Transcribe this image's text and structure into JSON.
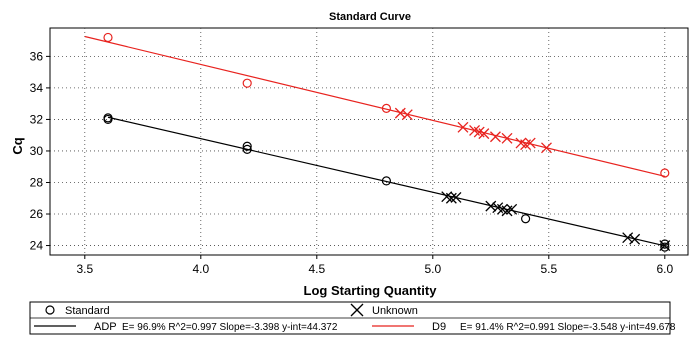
{
  "chart_data": {
    "type": "scatter",
    "title": "Standard Curve",
    "xlabel": "Log Starting Quantity",
    "ylabel": "Cq",
    "xlim": [
      3.35,
      6.1
    ],
    "ylim": [
      23.4,
      37.8
    ],
    "x_ticks": [
      "3.5",
      "4.0",
      "4.5",
      "5.0",
      "5.5",
      "6.0"
    ],
    "x_tick_values": [
      3.5,
      4.0,
      4.5,
      5.0,
      5.5,
      6.0
    ],
    "y_ticks": [
      "24",
      "26",
      "28",
      "30",
      "32",
      "34",
      "36"
    ],
    "y_tick_values": [
      24,
      26,
      28,
      30,
      32,
      34,
      36
    ],
    "grid": true,
    "legend_position": "bottom",
    "marker_legend": {
      "standard_label": "Standard",
      "unknown_label": "Unknown"
    },
    "series": [
      {
        "name": "ADP",
        "color": "#000000",
        "fit_text": "E= 96.9% R^2=0.997 Slope=-3.398 y-int=44.372",
        "slope": -3.398,
        "intercept": 44.372,
        "fit_range": [
          3.6,
          6.0
        ],
        "standards": [
          {
            "x": 3.6,
            "y": 32.1
          },
          {
            "x": 3.6,
            "y": 32.0
          },
          {
            "x": 4.2,
            "y": 30.3
          },
          {
            "x": 4.2,
            "y": 30.1
          },
          {
            "x": 4.8,
            "y": 28.1
          },
          {
            "x": 5.4,
            "y": 25.7
          },
          {
            "x": 6.0,
            "y": 24.1
          },
          {
            "x": 6.0,
            "y": 23.9
          }
        ],
        "unknowns": [
          {
            "x": 5.06,
            "y": 27.1
          },
          {
            "x": 5.08,
            "y": 27.0
          },
          {
            "x": 5.1,
            "y": 27.05
          },
          {
            "x": 5.25,
            "y": 26.5
          },
          {
            "x": 5.28,
            "y": 26.4
          },
          {
            "x": 5.3,
            "y": 26.3
          },
          {
            "x": 5.32,
            "y": 26.2
          },
          {
            "x": 5.34,
            "y": 26.3
          },
          {
            "x": 5.84,
            "y": 24.5
          },
          {
            "x": 5.87,
            "y": 24.4
          },
          {
            "x": 6.0,
            "y": 24.0
          }
        ]
      },
      {
        "name": "D9",
        "color": "#e8231f",
        "fit_text": "E= 91.4% R^2=0.991 Slope=-3.548 y-int=49.678",
        "slope": -3.548,
        "intercept": 49.678,
        "fit_range": [
          3.5,
          6.0
        ],
        "standards": [
          {
            "x": 3.6,
            "y": 37.2
          },
          {
            "x": 4.2,
            "y": 34.3
          },
          {
            "x": 4.8,
            "y": 32.7
          },
          {
            "x": 6.0,
            "y": 28.6
          }
        ],
        "unknowns": [
          {
            "x": 4.86,
            "y": 32.4
          },
          {
            "x": 4.89,
            "y": 32.3
          },
          {
            "x": 5.13,
            "y": 31.5
          },
          {
            "x": 5.18,
            "y": 31.3
          },
          {
            "x": 5.2,
            "y": 31.2
          },
          {
            "x": 5.22,
            "y": 31.1
          },
          {
            "x": 5.27,
            "y": 30.9
          },
          {
            "x": 5.32,
            "y": 30.8
          },
          {
            "x": 5.38,
            "y": 30.5
          },
          {
            "x": 5.4,
            "y": 30.4
          },
          {
            "x": 5.42,
            "y": 30.5
          },
          {
            "x": 5.49,
            "y": 30.2
          }
        ]
      }
    ]
  }
}
